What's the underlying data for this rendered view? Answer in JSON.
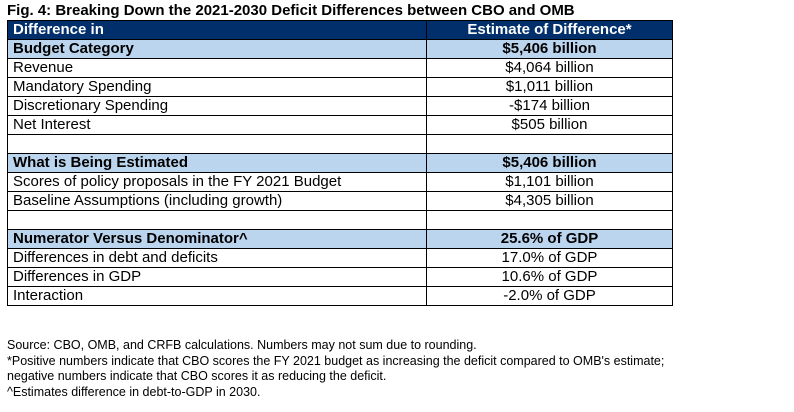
{
  "title": "Fig. 4: Breaking Down the 2021-2030 Deficit Differences between CBO and OMB",
  "table": {
    "header": [
      "Difference in",
      "Estimate of Difference*"
    ],
    "sections": [
      {
        "heading": "Budget Category",
        "total": "$5,406 billion",
        "rows": [
          {
            "label": "Revenue",
            "value": "$4,064 billion"
          },
          {
            "label": "Mandatory Spending",
            "value": "$1,011 billion"
          },
          {
            "label": "Discretionary Spending",
            "value": "-$174 billion"
          },
          {
            "label": "Net Interest",
            "value": "$505 billion"
          }
        ]
      },
      {
        "heading": "What is Being Estimated",
        "total": "$5,406 billion",
        "rows": [
          {
            "label": "Scores of policy proposals in the FY 2021 Budget",
            "value": "$1,101 billion"
          },
          {
            "label": "Baseline Assumptions (including growth)",
            "value": "$4,305 billion"
          }
        ]
      },
      {
        "heading": "Numerator Versus Denominator^",
        "total": "25.6% of GDP",
        "rows": [
          {
            "label": "Differences in debt and deficits",
            "value": "17.0% of GDP"
          },
          {
            "label": "Differences in GDP",
            "value": "10.6% of GDP"
          },
          {
            "label": "Interaction",
            "value": "-2.0% of GDP"
          }
        ]
      }
    ]
  },
  "notes": [
    "Source: CBO, OMB, and CRFB calculations. Numbers may not sum due to rounding.",
    "*Positive numbers indicate that CBO scores the FY 2021 budget as increasing the deficit compared to OMB's estimate;",
    "negative numbers indicate that CBO scores it as reducing the deficit.",
    "^Estimates difference in debt-to-GDP in 2030."
  ],
  "colors": {
    "header_bg": "#002f6c",
    "section_bg": "#bcd5ee"
  }
}
